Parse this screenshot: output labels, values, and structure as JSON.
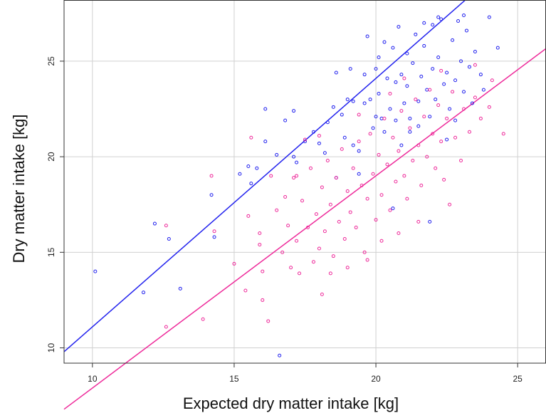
{
  "chart_data": {
    "type": "scatter",
    "title": "",
    "xlabel": "Expected dry matter intake [kg]",
    "ylabel": "Dry matter intake [kg]",
    "xlim": [
      9,
      26
    ],
    "ylim": [
      9.2,
      28.2
    ],
    "x_ticks": [
      10,
      15,
      20,
      25
    ],
    "y_ticks": [
      10,
      15,
      20,
      25
    ],
    "grid": true,
    "legend": "none",
    "colors": {
      "blue": "#2222ee",
      "pink": "#ee2a9a",
      "grid": "#d0d0d0",
      "frame": "#333333"
    },
    "series": [
      {
        "color": "#2222ee",
        "fit_line": {
          "intercept": -1.9,
          "slope": 1.3
        },
        "points": [
          [
            10.1,
            14.0
          ],
          [
            11.8,
            12.9
          ],
          [
            12.2,
            16.5
          ],
          [
            12.7,
            15.7
          ],
          [
            13.1,
            13.1
          ],
          [
            14.2,
            18.0
          ],
          [
            14.3,
            15.8
          ],
          [
            15.2,
            19.1
          ],
          [
            15.5,
            19.5
          ],
          [
            15.6,
            18.6
          ],
          [
            15.8,
            19.4
          ],
          [
            16.1,
            22.5
          ],
          [
            16.1,
            20.8
          ],
          [
            16.5,
            20.1
          ],
          [
            16.8,
            21.9
          ],
          [
            17.1,
            20.0
          ],
          [
            17.1,
            22.4
          ],
          [
            17.2,
            19.7
          ],
          [
            17.5,
            20.8
          ],
          [
            17.8,
            21.3
          ],
          [
            18.0,
            20.7
          ],
          [
            18.3,
            21.8
          ],
          [
            18.5,
            22.6
          ],
          [
            18.6,
            24.4
          ],
          [
            18.9,
            21.0
          ],
          [
            19.0,
            23.0
          ],
          [
            19.1,
            24.6
          ],
          [
            19.2,
            22.9
          ],
          [
            19.4,
            20.3
          ],
          [
            19.6,
            24.3
          ],
          [
            19.7,
            26.3
          ],
          [
            19.8,
            23.0
          ],
          [
            19.9,
            21.5
          ],
          [
            20.0,
            24.6
          ],
          [
            20.1,
            25.2
          ],
          [
            20.1,
            23.3
          ],
          [
            20.2,
            22.0
          ],
          [
            20.3,
            26.0
          ],
          [
            20.4,
            24.1
          ],
          [
            20.5,
            22.5
          ],
          [
            20.6,
            25.7
          ],
          [
            20.7,
            21.9
          ],
          [
            20.7,
            23.9
          ],
          [
            20.8,
            26.8
          ],
          [
            20.9,
            24.3
          ],
          [
            21.0,
            22.8
          ],
          [
            21.1,
            25.4
          ],
          [
            21.1,
            23.7
          ],
          [
            21.2,
            21.3
          ],
          [
            21.3,
            24.9
          ],
          [
            21.4,
            26.4
          ],
          [
            21.5,
            22.9
          ],
          [
            21.6,
            24.2
          ],
          [
            21.7,
            25.8
          ],
          [
            21.8,
            23.5
          ],
          [
            21.9,
            22.1
          ],
          [
            22.0,
            26.9
          ],
          [
            22.0,
            24.6
          ],
          [
            22.1,
            23.0
          ],
          [
            22.2,
            25.2
          ],
          [
            22.3,
            27.2
          ],
          [
            22.4,
            23.8
          ],
          [
            22.5,
            24.4
          ],
          [
            22.6,
            22.5
          ],
          [
            22.7,
            26.1
          ],
          [
            22.8,
            24.0
          ],
          [
            22.9,
            27.1
          ],
          [
            23.0,
            25.0
          ],
          [
            23.1,
            23.4
          ],
          [
            23.2,
            26.6
          ],
          [
            23.3,
            24.7
          ],
          [
            23.4,
            22.8
          ],
          [
            23.5,
            25.5
          ],
          [
            23.7,
            24.3
          ],
          [
            23.8,
            23.5
          ],
          [
            24.0,
            27.3
          ],
          [
            24.3,
            25.7
          ],
          [
            20.6,
            17.3
          ],
          [
            21.9,
            16.6
          ],
          [
            19.4,
            19.1
          ],
          [
            18.6,
            18.9
          ],
          [
            16.6,
            9.6
          ],
          [
            22.2,
            27.3
          ],
          [
            23.1,
            27.4
          ],
          [
            21.7,
            27.0
          ],
          [
            20.3,
            21.3
          ],
          [
            19.6,
            22.8
          ],
          [
            20.9,
            20.6
          ],
          [
            21.5,
            21.6
          ],
          [
            22.8,
            21.9
          ],
          [
            18.2,
            20.2
          ],
          [
            18.8,
            22.2
          ],
          [
            20.0,
            22.1
          ],
          [
            21.2,
            22.0
          ],
          [
            22.5,
            20.9
          ],
          [
            19.2,
            20.6
          ]
        ]
      },
      {
        "color": "#ee2a9a",
        "fit_line": {
          "intercept": -3.2,
          "slope": 1.11
        },
        "points": [
          [
            12.6,
            11.1
          ],
          [
            12.6,
            16.4
          ],
          [
            13.9,
            11.5
          ],
          [
            14.2,
            19.0
          ],
          [
            14.3,
            16.1
          ],
          [
            15.0,
            14.4
          ],
          [
            15.4,
            13.0
          ],
          [
            15.5,
            16.9
          ],
          [
            15.6,
            21.0
          ],
          [
            15.9,
            16.0
          ],
          [
            16.0,
            12.5
          ],
          [
            16.0,
            14.0
          ],
          [
            16.2,
            11.4
          ],
          [
            16.3,
            19.0
          ],
          [
            16.5,
            17.2
          ],
          [
            16.7,
            15.0
          ],
          [
            16.9,
            16.4
          ],
          [
            17.0,
            14.2
          ],
          [
            17.1,
            18.9
          ],
          [
            17.2,
            15.6
          ],
          [
            17.3,
            13.9
          ],
          [
            17.4,
            17.7
          ],
          [
            17.6,
            16.3
          ],
          [
            17.7,
            19.4
          ],
          [
            17.8,
            14.5
          ],
          [
            17.9,
            17.0
          ],
          [
            18.0,
            15.2
          ],
          [
            18.1,
            12.8
          ],
          [
            18.1,
            18.4
          ],
          [
            18.2,
            16.1
          ],
          [
            18.3,
            19.8
          ],
          [
            18.4,
            17.5
          ],
          [
            18.5,
            14.8
          ],
          [
            18.6,
            18.9
          ],
          [
            18.7,
            16.6
          ],
          [
            18.8,
            20.4
          ],
          [
            18.9,
            15.7
          ],
          [
            19.0,
            18.2
          ],
          [
            19.1,
            17.1
          ],
          [
            19.2,
            19.4
          ],
          [
            19.3,
            16.3
          ],
          [
            19.4,
            20.8
          ],
          [
            19.5,
            18.5
          ],
          [
            19.6,
            15.0
          ],
          [
            19.7,
            17.8
          ],
          [
            19.8,
            21.2
          ],
          [
            19.9,
            19.1
          ],
          [
            20.0,
            16.7
          ],
          [
            20.1,
            20.1
          ],
          [
            20.2,
            18.0
          ],
          [
            20.3,
            22.0
          ],
          [
            20.4,
            19.6
          ],
          [
            20.5,
            17.2
          ],
          [
            20.6,
            21.0
          ],
          [
            20.7,
            18.7
          ],
          [
            20.8,
            20.3
          ],
          [
            20.9,
            22.4
          ],
          [
            21.0,
            19.0
          ],
          [
            21.1,
            17.8
          ],
          [
            21.2,
            21.5
          ],
          [
            21.3,
            19.8
          ],
          [
            21.4,
            23.0
          ],
          [
            21.5,
            20.6
          ],
          [
            21.6,
            18.5
          ],
          [
            21.7,
            22.1
          ],
          [
            21.8,
            20.0
          ],
          [
            21.9,
            23.5
          ],
          [
            22.0,
            21.2
          ],
          [
            22.1,
            19.4
          ],
          [
            22.2,
            22.7
          ],
          [
            22.3,
            20.8
          ],
          [
            22.4,
            18.8
          ],
          [
            22.5,
            22.0
          ],
          [
            22.7,
            23.4
          ],
          [
            22.8,
            21.0
          ],
          [
            23.0,
            19.8
          ],
          [
            23.1,
            22.5
          ],
          [
            23.3,
            21.3
          ],
          [
            23.5,
            23.1
          ],
          [
            23.7,
            22.0
          ],
          [
            24.0,
            22.6
          ],
          [
            24.5,
            21.2
          ],
          [
            19.0,
            14.2
          ],
          [
            19.7,
            14.6
          ],
          [
            20.2,
            15.6
          ],
          [
            18.4,
            13.9
          ],
          [
            17.5,
            20.9
          ],
          [
            16.8,
            17.9
          ],
          [
            15.9,
            15.4
          ],
          [
            21.5,
            16.6
          ],
          [
            20.8,
            16.0
          ],
          [
            22.6,
            17.5
          ],
          [
            19.4,
            22.2
          ],
          [
            20.5,
            23.3
          ],
          [
            21.0,
            24.1
          ],
          [
            18.0,
            21.1
          ],
          [
            17.2,
            19.0
          ],
          [
            22.3,
            24.5
          ],
          [
            23.5,
            24.8
          ],
          [
            24.1,
            24.0
          ]
        ]
      }
    ]
  }
}
